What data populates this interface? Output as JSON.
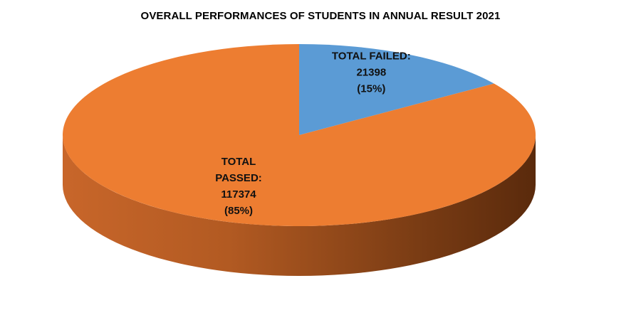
{
  "chart_data": {
    "type": "pie",
    "title": "OVERALL PERFORMANCES OF STUDENTS IN ANNUAL RESULT 2021",
    "slices": [
      {
        "label": "TOTAL FAILED:",
        "value": 21398,
        "percent_label": "(15%)",
        "color": "#5b9bd5"
      },
      {
        "label": "TOTAL PASSED:",
        "value": 117374,
        "percent_label": "(85%)",
        "color": "#ed7d31"
      }
    ],
    "legend": "none",
    "style": "3d"
  }
}
